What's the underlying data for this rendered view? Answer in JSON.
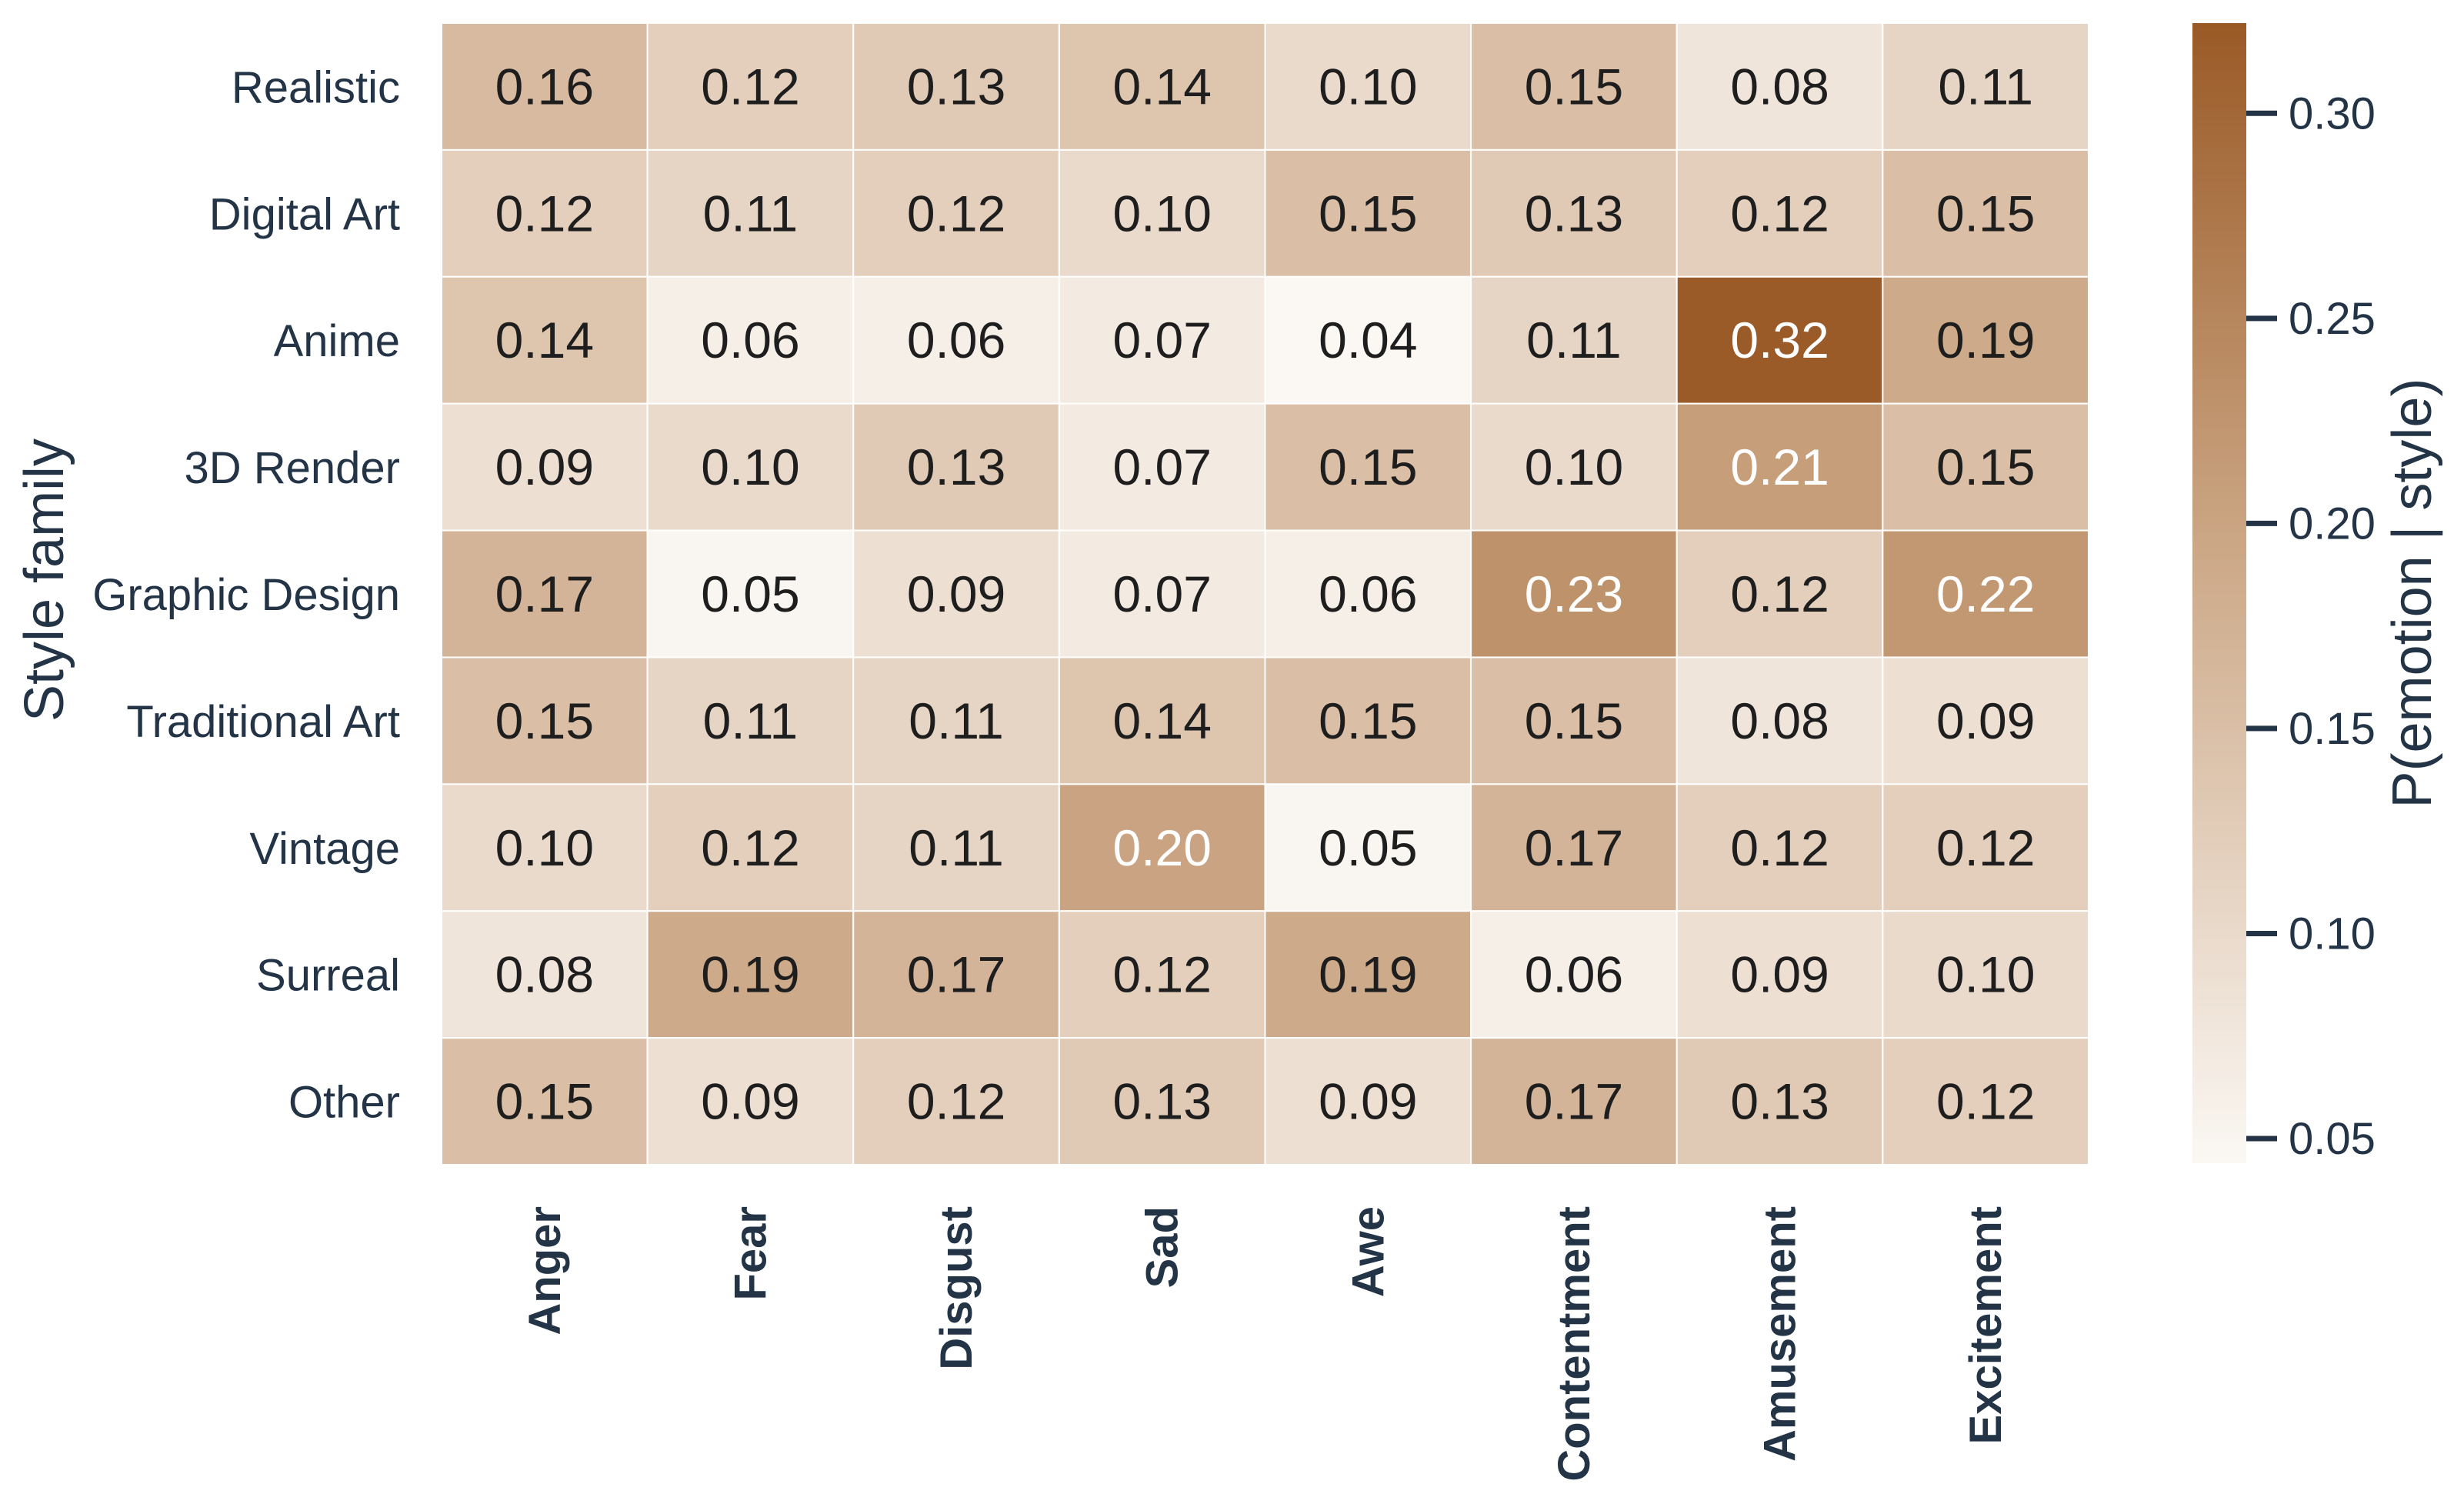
{
  "chart_data": {
    "type": "heatmap",
    "ylabel": "Style family",
    "colorbar_label": "P(emotion | style)",
    "rows": [
      "Realistic",
      "Digital Art",
      "Anime",
      "3D Render",
      "Graphic Design",
      "Traditional Art",
      "Vintage",
      "Surreal",
      "Other"
    ],
    "columns": [
      "Anger",
      "Fear",
      "Disgust",
      "Sad",
      "Awe",
      "Contentment",
      "Amusement",
      "Excitement"
    ],
    "values": [
      [
        0.16,
        0.12,
        0.13,
        0.14,
        0.1,
        0.15,
        0.08,
        0.11
      ],
      [
        0.12,
        0.11,
        0.12,
        0.1,
        0.15,
        0.13,
        0.12,
        0.15
      ],
      [
        0.14,
        0.06,
        0.06,
        0.07,
        0.04,
        0.11,
        0.32,
        0.19
      ],
      [
        0.09,
        0.1,
        0.13,
        0.07,
        0.15,
        0.1,
        0.21,
        0.15
      ],
      [
        0.17,
        0.05,
        0.09,
        0.07,
        0.06,
        0.23,
        0.12,
        0.22
      ],
      [
        0.15,
        0.11,
        0.11,
        0.14,
        0.15,
        0.15,
        0.08,
        0.09
      ],
      [
        0.1,
        0.12,
        0.11,
        0.2,
        0.05,
        0.17,
        0.12,
        0.12
      ],
      [
        0.08,
        0.19,
        0.17,
        0.12,
        0.19,
        0.06,
        0.09,
        0.1
      ],
      [
        0.15,
        0.09,
        0.12,
        0.13,
        0.09,
        0.17,
        0.13,
        0.12
      ]
    ],
    "colorbar_range": [
      0.044,
      0.322
    ],
    "colorbar_ticks": [
      "0.05",
      "0.10",
      "0.15",
      "0.20",
      "0.25",
      "0.30"
    ],
    "colormap": {
      "low": "#fbf8f4",
      "high": "#9a5a26"
    },
    "light_text_threshold": 0.2,
    "grid": false,
    "legend": "colorbar-right"
  }
}
